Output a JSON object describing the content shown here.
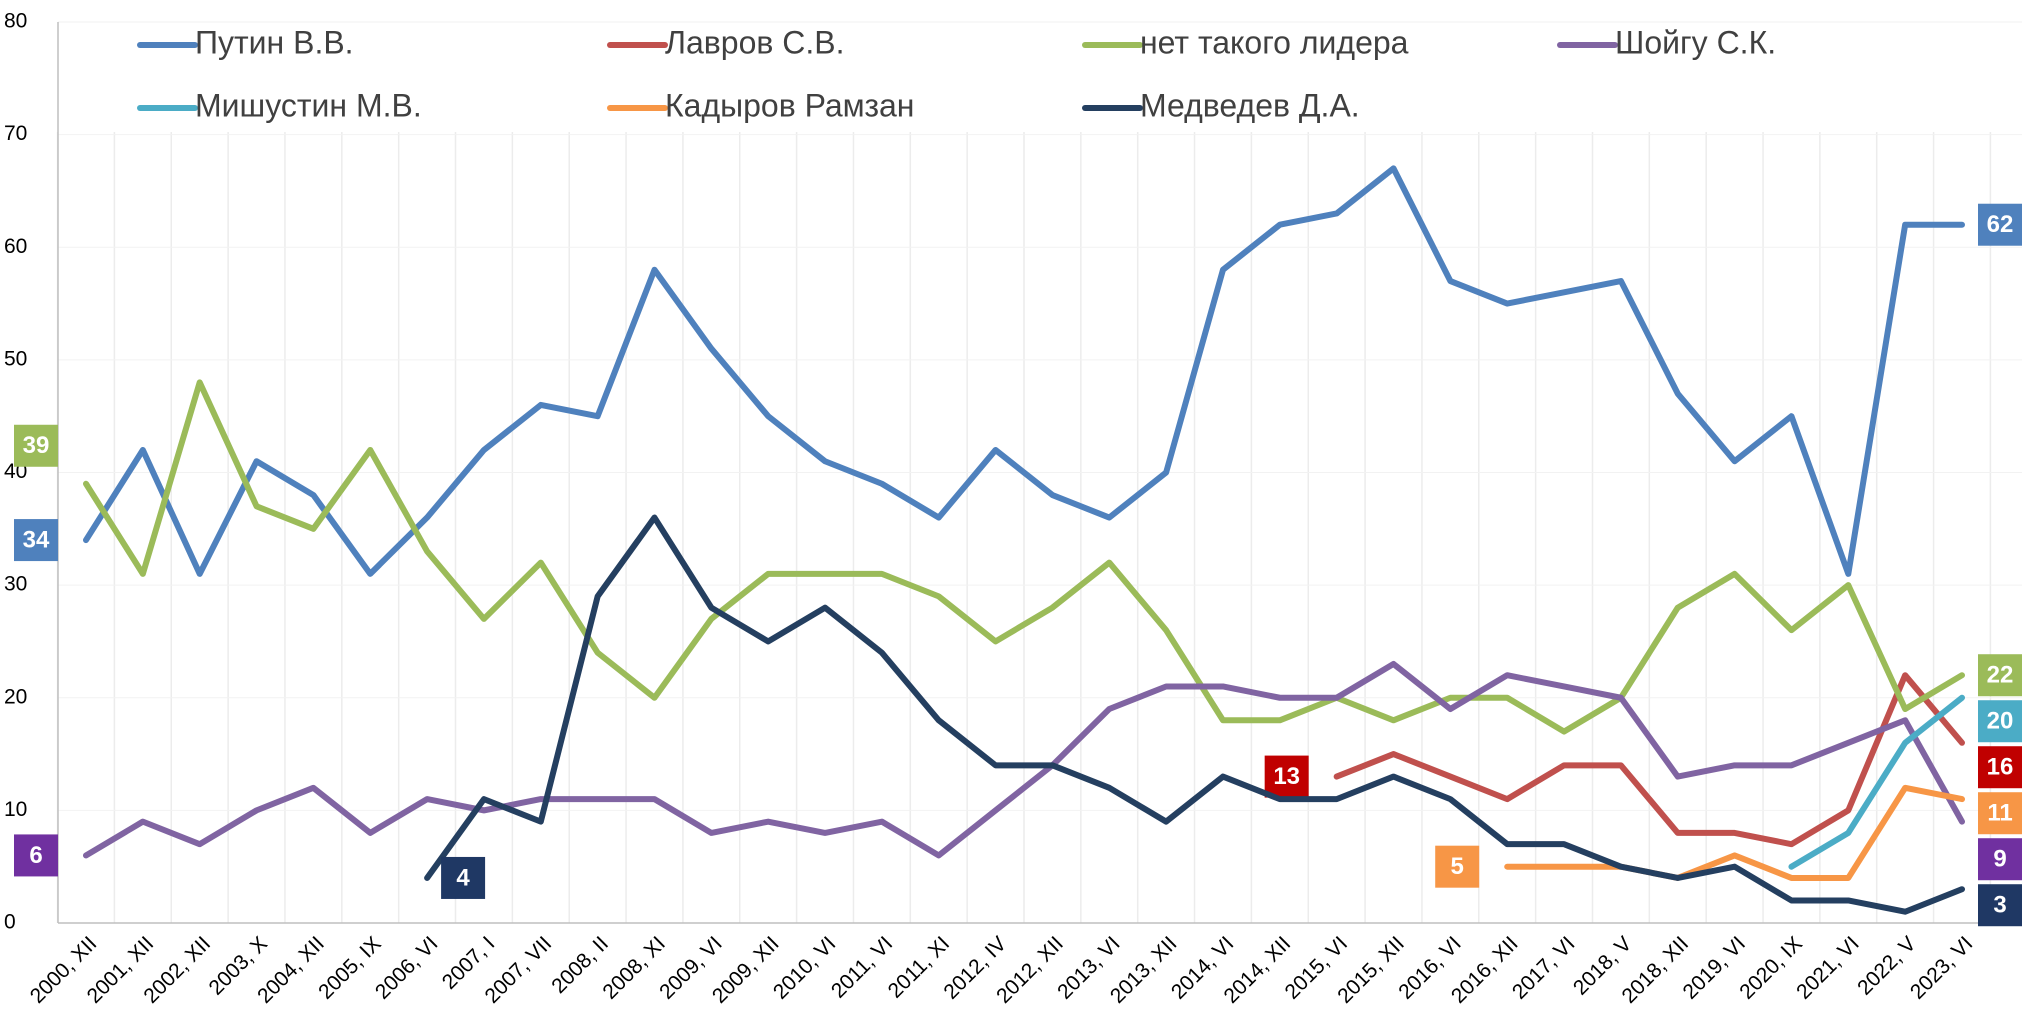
{
  "chart_data": {
    "type": "line",
    "categories": [
      "2000, XII",
      "2001, XII",
      "2002, XII",
      "2003, X",
      "2004, XII",
      "2005, IX",
      "2006, VI",
      "2007, I",
      "2007, VII",
      "2008, II",
      "2008, XI",
      "2009, VI",
      "2009, XII",
      "2010, VI",
      "2011, VI",
      "2011, XI",
      "2012, IV",
      "2012, XII",
      "2013, VI",
      "2013, XII",
      "2014, VI",
      "2014, XII",
      "2015, VI",
      "2015, XII",
      "2016, VI",
      "2016, XII",
      "2017, VI",
      "2018, V",
      "2018, XII",
      "2019, VI",
      "2020, IX",
      "2021, VI",
      "2022, V",
      "2023, VI"
    ],
    "ylim": [
      0,
      80
    ],
    "yticks": [
      0,
      10,
      20,
      30,
      40,
      50,
      60,
      70,
      80
    ],
    "grid": true,
    "series": [
      {
        "name": "Путин В.В.",
        "color": "#4f81bd",
        "values": [
          34,
          42,
          31,
          41,
          38,
          31,
          36,
          42,
          46,
          45,
          58,
          51,
          45,
          41,
          39,
          36,
          42,
          38,
          36,
          40,
          58,
          62,
          63,
          67,
          57,
          55,
          56,
          57,
          47,
          41,
          45,
          31,
          62,
          62
        ]
      },
      {
        "name": "Лавров С.В.",
        "color": "#c0504d",
        "values": [
          null,
          null,
          null,
          null,
          null,
          null,
          null,
          null,
          null,
          null,
          null,
          null,
          null,
          null,
          null,
          null,
          null,
          null,
          null,
          null,
          null,
          null,
          13,
          15,
          13,
          11,
          14,
          14,
          8,
          8,
          7,
          10,
          22,
          16
        ]
      },
      {
        "name": "нет такого лидера",
        "color": "#9bbb59",
        "values": [
          39,
          31,
          48,
          37,
          35,
          42,
          33,
          27,
          32,
          24,
          20,
          27,
          31,
          31,
          31,
          29,
          25,
          28,
          32,
          26,
          18,
          18,
          20,
          18,
          20,
          20,
          17,
          20,
          28,
          31,
          26,
          30,
          19,
          22
        ]
      },
      {
        "name": "Шойгу С.К.",
        "color": "#8064a2",
        "values": [
          6,
          9,
          7,
          10,
          12,
          8,
          11,
          10,
          11,
          11,
          11,
          8,
          9,
          8,
          9,
          6,
          10,
          14,
          19,
          21,
          21,
          20,
          20,
          23,
          19,
          22,
          21,
          20,
          13,
          14,
          14,
          16,
          18,
          9
        ]
      },
      {
        "name": "Мишустин М.В.",
        "color": "#4bacc6",
        "values": [
          null,
          null,
          null,
          null,
          null,
          null,
          null,
          null,
          null,
          null,
          null,
          null,
          null,
          null,
          null,
          null,
          null,
          null,
          null,
          null,
          null,
          null,
          null,
          null,
          null,
          null,
          null,
          null,
          null,
          null,
          5,
          8,
          16,
          20
        ]
      },
      {
        "name": "Кадыров Рамзан",
        "color": "#f79646",
        "values": [
          null,
          null,
          null,
          null,
          null,
          null,
          null,
          null,
          null,
          null,
          null,
          null,
          null,
          null,
          null,
          null,
          null,
          null,
          null,
          null,
          null,
          null,
          null,
          null,
          null,
          5,
          5,
          5,
          4,
          6,
          4,
          4,
          12,
          11
        ]
      },
      {
        "name": "Медведев Д.А.",
        "color": "#243f60",
        "values": [
          null,
          null,
          null,
          null,
          null,
          null,
          4,
          11,
          9,
          29,
          36,
          28,
          25,
          28,
          24,
          18,
          14,
          14,
          12,
          9,
          13,
          11,
          11,
          13,
          11,
          7,
          7,
          5,
          4,
          5,
          2,
          2,
          1,
          3
        ]
      }
    ]
  }
}
